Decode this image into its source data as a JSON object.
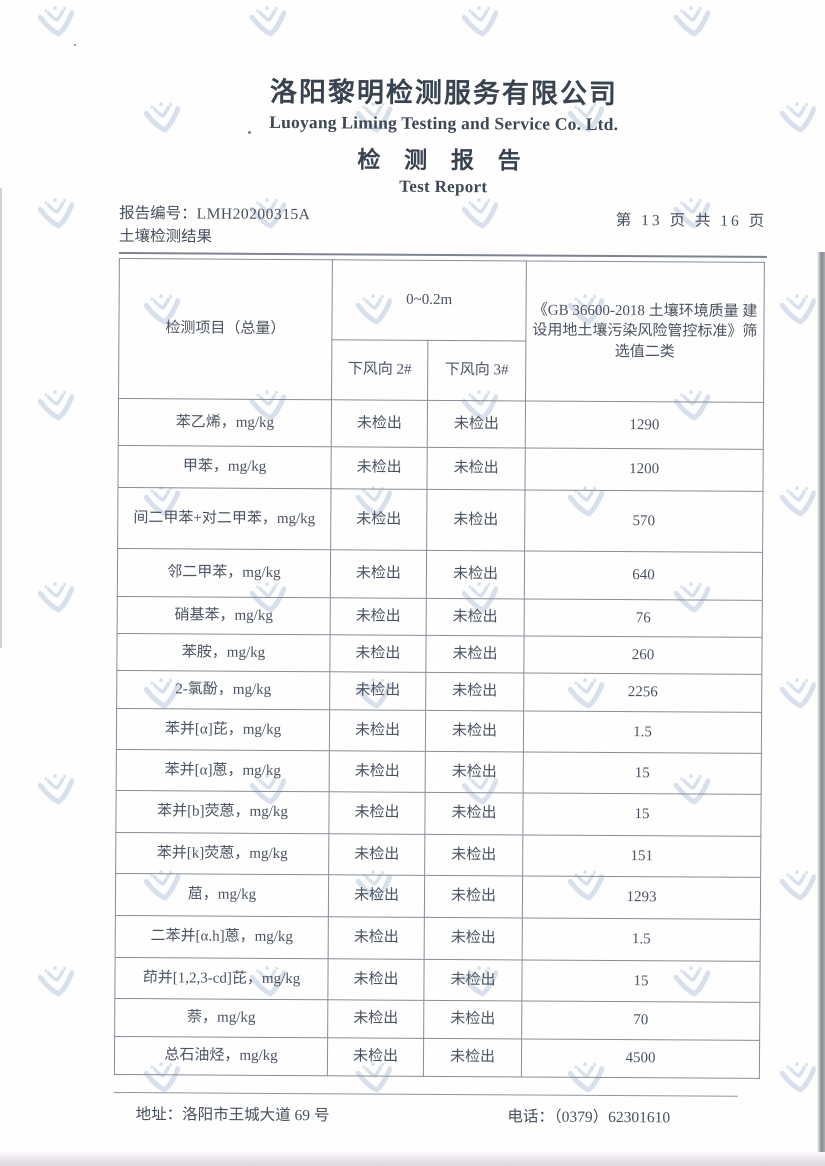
{
  "header": {
    "company_cn": "洛阳黎明检测服务有限公司",
    "company_en": "Luoyang Liming Testing and Service Co. Ltd.",
    "report_title_cn": "检 测 报 告",
    "report_title_en": "Test Report",
    "report_no_label": "报告编号：",
    "report_no": "LMH20200315A",
    "section_title": "土壤检测结果",
    "page_info": "第 13 页 共 16 页"
  },
  "table": {
    "col1_header": "检测项目（总量）",
    "depth_header": "0~0.2m",
    "downwind2_header": "下风向 2#",
    "downwind3_header": "下风向 3#",
    "standard_header": "《GB 36600-2018 土壤环境质量 建设用地土壤污染风险管控标准》筛选值二类",
    "rows": [
      {
        "item": "苯乙烯，mg/kg",
        "downwind2": "未检出",
        "downwind3": "未检出",
        "limit": "1290"
      },
      {
        "item": "甲苯，mg/kg",
        "downwind2": "未检出",
        "downwind3": "未检出",
        "limit": "1200"
      },
      {
        "item": "间二甲苯+对二甲苯，mg/kg",
        "downwind2": "未检出",
        "downwind3": "未检出",
        "limit": "570"
      },
      {
        "item": "邻二甲苯，mg/kg",
        "downwind2": "未检出",
        "downwind3": "未检出",
        "limit": "640"
      },
      {
        "item": "硝基苯，mg/kg",
        "downwind2": "未检出",
        "downwind3": "未检出",
        "limit": "76"
      },
      {
        "item": "苯胺，mg/kg",
        "downwind2": "未检出",
        "downwind3": "未检出",
        "limit": "260"
      },
      {
        "item": "2-氯酚，mg/kg",
        "downwind2": "未检出",
        "downwind3": "未检出",
        "limit": "2256"
      },
      {
        "item": "苯并[α]芘，mg/kg",
        "downwind2": "未检出",
        "downwind3": "未检出",
        "limit": "1.5"
      },
      {
        "item": "苯并[α]蒽，mg/kg",
        "downwind2": "未检出",
        "downwind3": "未检出",
        "limit": "15"
      },
      {
        "item": "苯并[b]荧蒽，mg/kg",
        "downwind2": "未检出",
        "downwind3": "未检出",
        "limit": "15"
      },
      {
        "item": "苯并[k]荧蒽，mg/kg",
        "downwind2": "未检出",
        "downwind3": "未检出",
        "limit": "151"
      },
      {
        "item": "䓛，mg/kg",
        "downwind2": "未检出",
        "downwind3": "未检出",
        "limit": "1293"
      },
      {
        "item": "二苯并[α.h]蒽，mg/kg",
        "downwind2": "未检出",
        "downwind3": "未检出",
        "limit": "1.5"
      },
      {
        "item": "茚并[1,2,3-cd]芘，mg/kg",
        "downwind2": "未检出",
        "downwind3": "未检出",
        "limit": "15"
      },
      {
        "item": "萘，mg/kg",
        "downwind2": "未检出",
        "downwind3": "未检出",
        "limit": "70"
      },
      {
        "item": "总石油烃，mg/kg",
        "downwind2": "未检出",
        "downwind3": "未检出",
        "limit": "4500"
      }
    ]
  },
  "footer": {
    "address_label": "地址：",
    "address": "洛阳市王城大道 69 号",
    "phone_label": "电话：",
    "phone": "（0379）62301610"
  },
  "colors": {
    "watermark": "#b9cbdc",
    "text": "#49525e",
    "table_border": "#868d97"
  }
}
